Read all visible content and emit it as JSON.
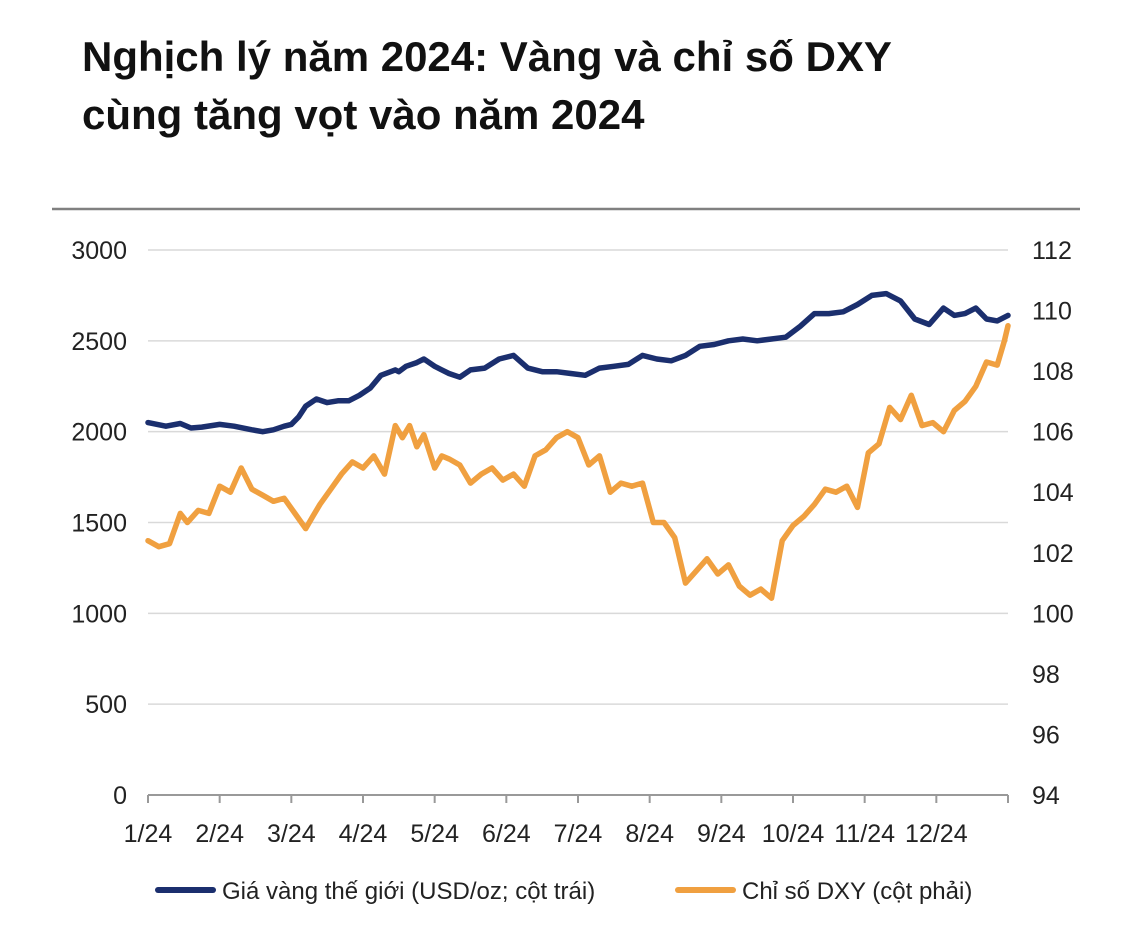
{
  "title": {
    "line1": "Nghịch lý năm 2024: Vàng và chỉ số DXY",
    "line2": "cùng tăng vọt vào năm 2024"
  },
  "colors": {
    "gold": "#1b2f6e",
    "dxy": "#f0a040",
    "grid": "#d9d9d9",
    "topRule": "#808080",
    "axis": "#999999"
  },
  "chart_data": {
    "type": "line",
    "title": "Nghịch lý năm 2024: Vàng và chỉ số DXY cùng tăng vọt vào năm 2024",
    "xlabel": "",
    "ylabel": "",
    "categories": [
      "1/24",
      "2/24",
      "3/24",
      "4/24",
      "5/24",
      "6/24",
      "7/24",
      "8/24",
      "9/24",
      "10/24",
      "11/24",
      "12/24"
    ],
    "x_range": [
      0,
      12
    ],
    "y_left": {
      "range": [
        0,
        3000
      ],
      "ticks": [
        "3000",
        "2500",
        "2000",
        "1500",
        "1000",
        "500",
        "0"
      ]
    },
    "y_right": {
      "range": [
        94,
        112
      ],
      "ticks": [
        "112",
        "110",
        "108",
        "106",
        "104",
        "102",
        "100",
        "98",
        "96",
        "94"
      ]
    },
    "grid": true,
    "legend_position": "bottom",
    "series": [
      {
        "name": "Giá vàng thế giới (USD/oz; cột trái)",
        "axis": "left",
        "x": [
          0.0,
          0.25,
          0.45,
          0.6,
          0.75,
          1.0,
          1.2,
          1.45,
          1.6,
          1.75,
          1.9,
          2.0,
          2.1,
          2.2,
          2.35,
          2.5,
          2.65,
          2.8,
          2.95,
          3.1,
          3.25,
          3.45,
          3.5,
          3.6,
          3.75,
          3.85,
          4.0,
          4.1,
          4.2,
          4.35,
          4.5,
          4.7,
          4.9,
          5.1,
          5.3,
          5.5,
          5.7,
          5.9,
          6.1,
          6.3,
          6.5,
          6.7,
          6.9,
          7.1,
          7.3,
          7.5,
          7.7,
          7.9,
          8.1,
          8.3,
          8.5,
          8.7,
          8.9,
          9.1,
          9.3,
          9.5,
          9.7,
          9.9,
          10.1,
          10.3,
          10.5,
          10.7,
          10.9,
          11.1,
          11.25,
          11.4,
          11.55,
          11.7,
          11.85,
          12.0
        ],
        "values": [
          2050,
          2030,
          2045,
          2020,
          2025,
          2040,
          2030,
          2010,
          2000,
          2010,
          2030,
          2040,
          2080,
          2140,
          2180,
          2160,
          2170,
          2170,
          2200,
          2240,
          2310,
          2340,
          2330,
          2360,
          2380,
          2400,
          2360,
          2340,
          2320,
          2300,
          2340,
          2350,
          2400,
          2420,
          2350,
          2330,
          2330,
          2320,
          2310,
          2350,
          2360,
          2370,
          2420,
          2400,
          2390,
          2420,
          2470,
          2480,
          2500,
          2510,
          2500,
          2510,
          2520,
          2580,
          2650,
          2650,
          2660,
          2700,
          2750,
          2760,
          2720,
          2620,
          2590,
          2680,
          2640,
          2650,
          2680,
          2620,
          2610,
          2640
        ]
      },
      {
        "name": "Chỉ số DXY (cột phải)",
        "axis": "right",
        "x": [
          0.0,
          0.15,
          0.3,
          0.45,
          0.55,
          0.7,
          0.85,
          1.0,
          1.15,
          1.3,
          1.45,
          1.6,
          1.75,
          1.9,
          2.05,
          2.2,
          2.3,
          2.4,
          2.55,
          2.7,
          2.85,
          3.0,
          3.15,
          3.3,
          3.45,
          3.55,
          3.65,
          3.75,
          3.85,
          4.0,
          4.1,
          4.2,
          4.35,
          4.5,
          4.65,
          4.8,
          4.95,
          5.1,
          5.25,
          5.4,
          5.55,
          5.7,
          5.85,
          6.0,
          6.15,
          6.3,
          6.45,
          6.6,
          6.75,
          6.9,
          7.05,
          7.2,
          7.35,
          7.5,
          7.65,
          7.8,
          7.95,
          8.1,
          8.25,
          8.4,
          8.55,
          8.7,
          8.85,
          9.0,
          9.15,
          9.3,
          9.45,
          9.6,
          9.75,
          9.9,
          10.05,
          10.2,
          10.35,
          10.5,
          10.65,
          10.8,
          10.95,
          11.1,
          11.25,
          11.4,
          11.55,
          11.7,
          11.85,
          11.95,
          12.0
        ],
        "values": [
          102.4,
          102.2,
          102.3,
          103.3,
          103.0,
          103.4,
          103.3,
          104.2,
          104.0,
          104.8,
          104.1,
          103.9,
          103.7,
          103.8,
          103.3,
          102.8,
          103.2,
          103.6,
          104.1,
          104.6,
          105.0,
          104.8,
          105.2,
          104.6,
          106.2,
          105.8,
          106.2,
          105.5,
          105.9,
          104.8,
          105.2,
          105.1,
          104.9,
          104.3,
          104.6,
          104.8,
          104.4,
          104.6,
          104.2,
          105.2,
          105.4,
          105.8,
          106.0,
          105.8,
          104.9,
          105.2,
          104.0,
          104.3,
          104.2,
          104.3,
          103.0,
          103.0,
          102.5,
          101.0,
          101.4,
          101.8,
          101.3,
          101.6,
          100.9,
          100.6,
          100.8,
          100.5,
          102.4,
          102.9,
          103.2,
          103.6,
          104.1,
          104.0,
          104.2,
          103.5,
          105.3,
          105.6,
          106.8,
          106.4,
          107.2,
          106.2,
          106.3,
          106.0,
          106.7,
          107.0,
          107.5,
          108.3,
          108.2,
          109.0,
          109.5
        ]
      }
    ]
  }
}
